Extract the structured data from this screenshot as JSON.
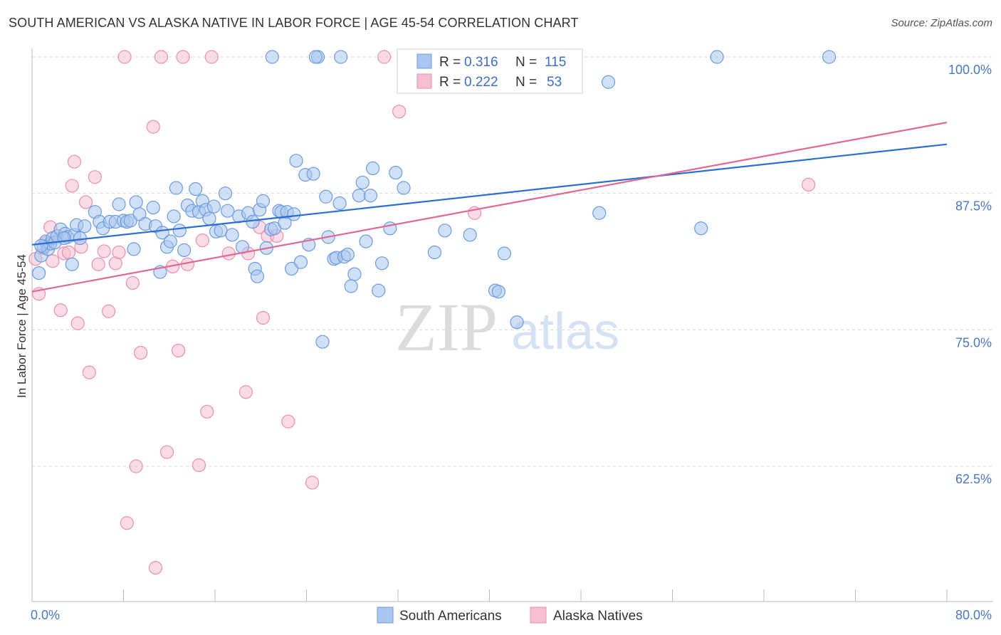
{
  "header": {
    "title": "SOUTH AMERICAN VS ALASKA NATIVE IN LABOR FORCE | AGE 45-54 CORRELATION CHART",
    "source": "Source: ZipAtlas.com"
  },
  "watermark": {
    "zip": "ZIP",
    "atlas": "atlas"
  },
  "colors": {
    "blue_fill": "#a9c6ef",
    "blue_stroke": "#6d9be0",
    "blue_line": "#2c6fd0",
    "pink_fill": "#f6bfd1",
    "pink_stroke": "#eb8fae",
    "pink_line": "#e06892",
    "grid": "#d8d8d8",
    "axis_label": "#4a78c2"
  },
  "chart_data": {
    "type": "scatter",
    "title": "SOUTH AMERICAN VS ALASKA NATIVE IN LABOR FORCE | AGE 45-54 CORRELATION CHART",
    "xlabel": "",
    "ylabel": "In Labor Force | Age 45-54",
    "xlim": [
      0,
      80
    ],
    "ylim": [
      50,
      101
    ],
    "x_tick_labels": [
      "0.0%",
      "80.0%"
    ],
    "y_ticks": [
      62.5,
      75.0,
      87.5,
      100.0
    ],
    "y_tick_labels": [
      "62.5%",
      "75.0%",
      "87.5%",
      "100.0%"
    ],
    "grid": true,
    "legend_placement": "top-center",
    "legend": [
      {
        "r_label": "R =",
        "r_value": "0.316",
        "n_label": "N =",
        "n_value": "115"
      },
      {
        "r_label": "R =",
        "r_value": "0.222",
        "n_label": "N =",
        "n_value": "53"
      }
    ],
    "series": [
      {
        "name": "South Americans",
        "trend": {
          "x": [
            0,
            80
          ],
          "y": [
            82.8,
            92.0
          ]
        },
        "points": [
          [
            0.6,
            80.2
          ],
          [
            0.8,
            81.8
          ],
          [
            1.0,
            82.6
          ],
          [
            1.2,
            83.1
          ],
          [
            1.4,
            82.4
          ],
          [
            1.6,
            82.9
          ],
          [
            1.8,
            83.4
          ],
          [
            2.0,
            83.0
          ],
          [
            2.2,
            83.6
          ],
          [
            2.5,
            84.2
          ],
          [
            2.9,
            83.8
          ],
          [
            3.1,
            83.5
          ],
          [
            3.5,
            81.0
          ],
          [
            3.7,
            83.7
          ],
          [
            3.9,
            84.6
          ],
          [
            4.2,
            83.4
          ],
          [
            4.6,
            84.5
          ],
          [
            5.5,
            85.8
          ],
          [
            5.9,
            84.9
          ],
          [
            6.2,
            84.3
          ],
          [
            6.8,
            84.9
          ],
          [
            7.3,
            84.9
          ],
          [
            7.6,
            86.5
          ],
          [
            8.0,
            85.0
          ],
          [
            8.3,
            84.9
          ],
          [
            8.6,
            85.0
          ],
          [
            8.9,
            82.4
          ],
          [
            9.1,
            86.7
          ],
          [
            9.4,
            85.6
          ],
          [
            9.9,
            84.7
          ],
          [
            10.6,
            86.2
          ],
          [
            10.8,
            84.5
          ],
          [
            11.2,
            80.3
          ],
          [
            11.4,
            83.9
          ],
          [
            11.8,
            82.6
          ],
          [
            12.1,
            83.1
          ],
          [
            12.4,
            85.4
          ],
          [
            12.6,
            88.0
          ],
          [
            12.9,
            84.1
          ],
          [
            13.3,
            82.3
          ],
          [
            13.6,
            86.4
          ],
          [
            14.0,
            85.9
          ],
          [
            14.3,
            87.9
          ],
          [
            14.6,
            85.8
          ],
          [
            14.9,
            86.8
          ],
          [
            15.2,
            86.0
          ],
          [
            15.5,
            85.2
          ],
          [
            15.9,
            86.3
          ],
          [
            16.1,
            84.0
          ],
          [
            16.5,
            84.1
          ],
          [
            16.9,
            87.5
          ],
          [
            17.1,
            85.9
          ],
          [
            17.5,
            83.7
          ],
          [
            18.1,
            85.4
          ],
          [
            18.4,
            82.6
          ],
          [
            18.9,
            85.7
          ],
          [
            19.3,
            84.9
          ],
          [
            19.5,
            80.6
          ],
          [
            19.9,
            86.0
          ],
          [
            20.2,
            86.8
          ],
          [
            20.5,
            82.5
          ],
          [
            20.9,
            84.2
          ],
          [
            21.2,
            84.3
          ],
          [
            21.6,
            85.9
          ],
          [
            21.8,
            85.8
          ],
          [
            22.1,
            84.8
          ],
          [
            22.3,
            85.8
          ],
          [
            22.7,
            80.6
          ],
          [
            22.9,
            85.6
          ],
          [
            23.1,
            90.5
          ],
          [
            23.5,
            81.2
          ],
          [
            23.9,
            89.2
          ],
          [
            24.2,
            82.8
          ],
          [
            24.6,
            89.3
          ],
          [
            25.0,
            100.0
          ],
          [
            25.7,
            87.2
          ],
          [
            25.9,
            83.5
          ],
          [
            26.4,
            81.5
          ],
          [
            26.6,
            81.6
          ],
          [
            26.9,
            86.6
          ],
          [
            27.3,
            81.7
          ],
          [
            27.6,
            81.9
          ],
          [
            27.9,
            79.0
          ],
          [
            28.2,
            80.1
          ],
          [
            28.6,
            87.3
          ],
          [
            28.9,
            88.5
          ],
          [
            29.2,
            83.1
          ],
          [
            29.6,
            87.3
          ],
          [
            29.8,
            89.8
          ],
          [
            30.3,
            78.6
          ],
          [
            30.6,
            81.1
          ],
          [
            31.3,
            84.3
          ],
          [
            31.8,
            89.4
          ],
          [
            32.5,
            88.0
          ],
          [
            33.0,
            100.0
          ],
          [
            35.2,
            82.1
          ],
          [
            36.1,
            84.1
          ],
          [
            37.0,
            97.3
          ],
          [
            38.3,
            83.7
          ],
          [
            40.5,
            78.6
          ],
          [
            40.8,
            78.5
          ],
          [
            41.3,
            82.0
          ],
          [
            42.4,
            75.7
          ],
          [
            49.6,
            85.7
          ],
          [
            50.4,
            97.7
          ],
          [
            58.5,
            84.3
          ],
          [
            59.9,
            100.0
          ],
          [
            69.7,
            100.0
          ],
          [
            21.0,
            100.0
          ],
          [
            24.8,
            100.0
          ],
          [
            19.7,
            79.9
          ],
          [
            27.0,
            100.0
          ],
          [
            0.8,
            82.7
          ],
          [
            2.8,
            83.4
          ],
          [
            25.4,
            73.9
          ]
        ]
      },
      {
        "name": "Alaska Natives",
        "trend": {
          "x": [
            0,
            80
          ],
          "y": [
            78.5,
            94.0
          ]
        },
        "points": [
          [
            0.3,
            81.5
          ],
          [
            0.6,
            78.3
          ],
          [
            1.0,
            82.5
          ],
          [
            1.3,
            83.0
          ],
          [
            1.6,
            84.4
          ],
          [
            1.8,
            81.3
          ],
          [
            2.2,
            83.6
          ],
          [
            2.5,
            76.8
          ],
          [
            2.8,
            82.0
          ],
          [
            3.2,
            82.1
          ],
          [
            3.5,
            88.2
          ],
          [
            3.7,
            90.4
          ],
          [
            4.0,
            75.6
          ],
          [
            4.3,
            82.6
          ],
          [
            4.7,
            86.7
          ],
          [
            5.0,
            71.1
          ],
          [
            5.5,
            89.0
          ],
          [
            5.8,
            81.0
          ],
          [
            6.3,
            82.2
          ],
          [
            6.7,
            76.7
          ],
          [
            7.3,
            81.1
          ],
          [
            7.6,
            82.1
          ],
          [
            8.1,
            100.0
          ],
          [
            8.3,
            57.3
          ],
          [
            8.8,
            79.3
          ],
          [
            9.1,
            62.5
          ],
          [
            9.5,
            72.9
          ],
          [
            10.6,
            93.6
          ],
          [
            10.8,
            53.2
          ],
          [
            11.3,
            100.0
          ],
          [
            11.8,
            63.8
          ],
          [
            12.3,
            80.8
          ],
          [
            12.8,
            73.1
          ],
          [
            13.2,
            100.0
          ],
          [
            13.6,
            81.0
          ],
          [
            14.6,
            62.6
          ],
          [
            14.9,
            83.2
          ],
          [
            15.3,
            67.5
          ],
          [
            15.7,
            100.0
          ],
          [
            17.2,
            82.0
          ],
          [
            18.7,
            69.3
          ],
          [
            18.9,
            82.0
          ],
          [
            19.9,
            84.4
          ],
          [
            20.2,
            76.1
          ],
          [
            20.6,
            83.6
          ],
          [
            21.4,
            83.6
          ],
          [
            22.4,
            66.6
          ],
          [
            24.5,
            61.0
          ],
          [
            30.8,
            100.0
          ],
          [
            32.1,
            95.0
          ],
          [
            38.7,
            85.7
          ],
          [
            45.4,
            100.0
          ],
          [
            67.9,
            88.3
          ]
        ]
      }
    ]
  },
  "bottom_legend": [
    "South Americans",
    "Alaska Natives"
  ]
}
